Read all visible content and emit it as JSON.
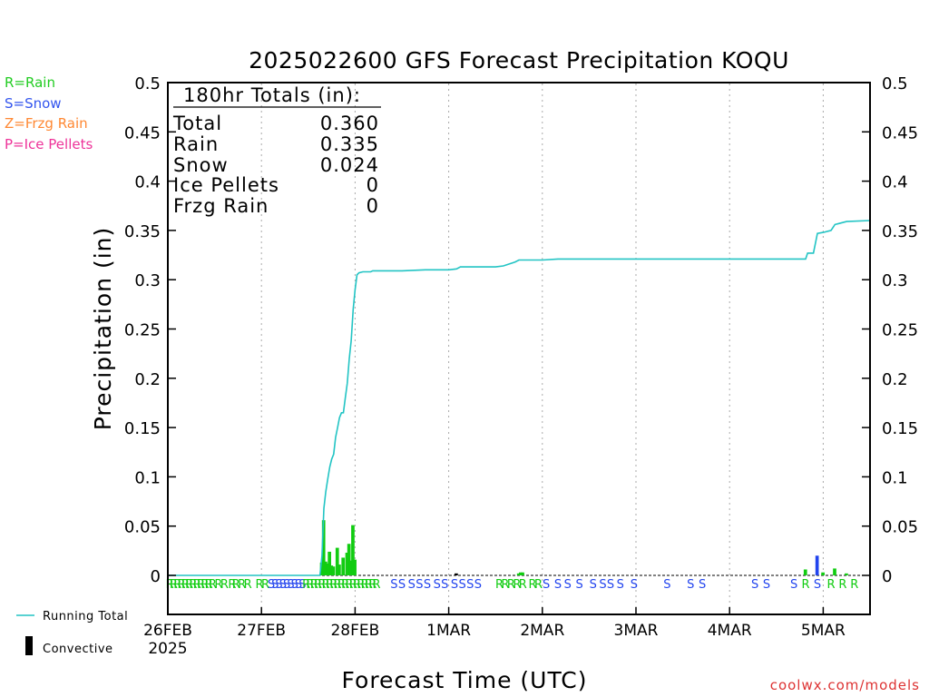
{
  "title": "2025022600 GFS Forecast Precipitation KOQU",
  "legend_types": [
    {
      "text": "R=Rain",
      "color": "#22cc22"
    },
    {
      "text": "S=Snow",
      "color": "#3355ee"
    },
    {
      "text": "Z=Frzg Rain",
      "color": "#ff8833"
    },
    {
      "text": "P=Ice Pellets",
      "color": "#ee3399"
    }
  ],
  "totals_box": {
    "header": "180hr Totals (in):",
    "rows": [
      {
        "label": "Total",
        "value": "0.360"
      },
      {
        "label": "Rain",
        "value": "0.335"
      },
      {
        "label": "Snow",
        "value": "0.024"
      },
      {
        "label": "Ice Pellets",
        "value": "0"
      },
      {
        "label": "Frzg Rain",
        "value": "0"
      }
    ]
  },
  "bottom_legend": {
    "running_total": "Running Total",
    "convective": "Convective"
  },
  "footer": "coolwx.com/models",
  "colors": {
    "running_total": "#22c4c4",
    "rain": "#11cc11",
    "snow": "#2244ee",
    "convective": "#000000",
    "grid": "#aaaaaa",
    "footer": "#dd3333"
  },
  "chart_data": {
    "type": "bar",
    "title": "2025022600 GFS Forecast Precipitation KOQU",
    "xlabel": "Forecast Time (UTC)",
    "ylabel": "Precipitation (in)",
    "ylim": [
      0,
      0.5
    ],
    "xlim_hours": [
      0,
      180
    ],
    "y_ticks": [
      "0",
      "0.05",
      "0.1",
      "0.15",
      "0.2",
      "0.25",
      "0.3",
      "0.35",
      "0.4",
      "0.45",
      "0.5"
    ],
    "x_ticks": [
      {
        "hour": 0,
        "label": "26FEB",
        "sub": "2025"
      },
      {
        "hour": 24,
        "label": "27FEB",
        "sub": ""
      },
      {
        "hour": 48,
        "label": "28FEB",
        "sub": ""
      },
      {
        "hour": 72,
        "label": "1MAR",
        "sub": ""
      },
      {
        "hour": 96,
        "label": "2MAR",
        "sub": ""
      },
      {
        "hour": 120,
        "label": "3MAR",
        "sub": ""
      },
      {
        "hour": 144,
        "label": "4MAR",
        "sub": ""
      },
      {
        "hour": 168,
        "label": "5MAR",
        "sub": ""
      }
    ],
    "grid": "vertical dotted",
    "bars": [
      {
        "hour": 39.5,
        "value": 0.013,
        "type": "rain"
      },
      {
        "hour": 40.0,
        "value": 0.056,
        "type": "rain"
      },
      {
        "hour": 40.5,
        "value": 0.014,
        "type": "rain"
      },
      {
        "hour": 41.0,
        "value": 0.012,
        "type": "rain"
      },
      {
        "hour": 41.5,
        "value": 0.024,
        "type": "rain"
      },
      {
        "hour": 42.0,
        "value": 0.01,
        "type": "rain"
      },
      {
        "hour": 42.5,
        "value": 0.009,
        "type": "rain"
      },
      {
        "hour": 43.5,
        "value": 0.028,
        "type": "rain"
      },
      {
        "hour": 44.0,
        "value": 0.011,
        "type": "rain"
      },
      {
        "hour": 45.0,
        "value": 0.018,
        "type": "rain"
      },
      {
        "hour": 46.0,
        "value": 0.023,
        "type": "rain"
      },
      {
        "hour": 46.5,
        "value": 0.032,
        "type": "rain"
      },
      {
        "hour": 47.0,
        "value": 0.015,
        "type": "rain"
      },
      {
        "hour": 47.5,
        "value": 0.051,
        "type": "rain"
      },
      {
        "hour": 48.0,
        "value": 0.016,
        "type": "rain"
      },
      {
        "hour": 74.0,
        "value": 0.002,
        "type": "convective"
      },
      {
        "hour": 90.0,
        "value": 0.002,
        "type": "rain"
      },
      {
        "hour": 90.5,
        "value": 0.003,
        "type": "rain"
      },
      {
        "hour": 91.0,
        "value": 0.003,
        "type": "rain"
      },
      {
        "hour": 163.5,
        "value": 0.006,
        "type": "rain"
      },
      {
        "hour": 166.5,
        "value": 0.02,
        "type": "snow"
      },
      {
        "hour": 168.0,
        "value": 0.003,
        "type": "rain"
      },
      {
        "hour": 171.0,
        "value": 0.007,
        "type": "rain"
      },
      {
        "hour": 174.0,
        "value": 0.002,
        "type": "rain"
      }
    ],
    "running_total": [
      [
        0,
        0
      ],
      [
        39,
        0
      ],
      [
        39.5,
        0.02
      ],
      [
        40,
        0.068
      ],
      [
        40.5,
        0.085
      ],
      [
        41,
        0.098
      ],
      [
        41.5,
        0.11
      ],
      [
        42,
        0.118
      ],
      [
        42.5,
        0.123
      ],
      [
        43,
        0.14
      ],
      [
        43.5,
        0.15
      ],
      [
        44,
        0.16
      ],
      [
        44.5,
        0.165
      ],
      [
        45,
        0.165
      ],
      [
        45.5,
        0.18
      ],
      [
        46,
        0.195
      ],
      [
        46.5,
        0.22
      ],
      [
        47,
        0.238
      ],
      [
        47.5,
        0.27
      ],
      [
        48,
        0.29
      ],
      [
        48.5,
        0.305
      ],
      [
        49,
        0.307
      ],
      [
        50,
        0.308
      ],
      [
        52,
        0.308
      ],
      [
        52.5,
        0.309
      ],
      [
        60,
        0.309
      ],
      [
        66,
        0.31
      ],
      [
        72,
        0.31
      ],
      [
        74,
        0.311
      ],
      [
        75,
        0.313
      ],
      [
        84,
        0.313
      ],
      [
        86,
        0.314
      ],
      [
        89,
        0.318
      ],
      [
        90,
        0.32
      ],
      [
        96,
        0.32
      ],
      [
        100,
        0.321
      ],
      [
        162,
        0.321
      ],
      [
        163.5,
        0.321
      ],
      [
        164,
        0.327
      ],
      [
        165.5,
        0.327
      ],
      [
        166.5,
        0.347
      ],
      [
        168,
        0.348
      ],
      [
        170,
        0.35
      ],
      [
        171,
        0.356
      ],
      [
        172,
        0.357
      ],
      [
        174,
        0.359
      ],
      [
        180,
        0.36
      ]
    ],
    "type_markers": [
      {
        "hour": 0.5,
        "t": "R"
      },
      {
        "hour": 1.5,
        "t": "R"
      },
      {
        "hour": 2.5,
        "t": "R"
      },
      {
        "hour": 3.5,
        "t": "R"
      },
      {
        "hour": 4.5,
        "t": "R"
      },
      {
        "hour": 5.5,
        "t": "R"
      },
      {
        "hour": 6.5,
        "t": "R"
      },
      {
        "hour": 7.5,
        "t": "R"
      },
      {
        "hour": 8.5,
        "t": "R"
      },
      {
        "hour": 9.5,
        "t": "R"
      },
      {
        "hour": 10.5,
        "t": "R"
      },
      {
        "hour": 11.5,
        "t": "R"
      },
      {
        "hour": 13,
        "t": "R"
      },
      {
        "hour": 14.5,
        "t": "R"
      },
      {
        "hour": 16.5,
        "t": "R"
      },
      {
        "hour": 17.5,
        "t": "R"
      },
      {
        "hour": 19,
        "t": "R"
      },
      {
        "hour": 20.5,
        "t": "R"
      },
      {
        "hour": 23.5,
        "t": "R"
      },
      {
        "hour": 25,
        "t": "R"
      },
      {
        "hour": 26.5,
        "t": "S"
      },
      {
        "hour": 27.5,
        "t": "S"
      },
      {
        "hour": 28.5,
        "t": "S"
      },
      {
        "hour": 29.5,
        "t": "S"
      },
      {
        "hour": 30.5,
        "t": "S"
      },
      {
        "hour": 31.5,
        "t": "S"
      },
      {
        "hour": 32.5,
        "t": "S"
      },
      {
        "hour": 33.5,
        "t": "S"
      },
      {
        "hour": 34.5,
        "t": "S"
      },
      {
        "hour": 35.5,
        "t": "R"
      },
      {
        "hour": 36.5,
        "t": "R"
      },
      {
        "hour": 37.5,
        "t": "R"
      },
      {
        "hour": 38.5,
        "t": "R"
      },
      {
        "hour": 39.5,
        "t": "R"
      },
      {
        "hour": 40.5,
        "t": "R"
      },
      {
        "hour": 41.5,
        "t": "R"
      },
      {
        "hour": 42.5,
        "t": "R"
      },
      {
        "hour": 43.5,
        "t": "R"
      },
      {
        "hour": 44.5,
        "t": "R"
      },
      {
        "hour": 45.5,
        "t": "R"
      },
      {
        "hour": 46.5,
        "t": "R"
      },
      {
        "hour": 47.5,
        "t": "R"
      },
      {
        "hour": 48.5,
        "t": "R"
      },
      {
        "hour": 49.5,
        "t": "R"
      },
      {
        "hour": 50.5,
        "t": "R"
      },
      {
        "hour": 51.5,
        "t": "R"
      },
      {
        "hour": 52.5,
        "t": "R"
      },
      {
        "hour": 53.5,
        "t": "R"
      },
      {
        "hour": 58,
        "t": "S"
      },
      {
        "hour": 60,
        "t": "S"
      },
      {
        "hour": 62.5,
        "t": "S"
      },
      {
        "hour": 64.5,
        "t": "S"
      },
      {
        "hour": 66.5,
        "t": "S"
      },
      {
        "hour": 69,
        "t": "S"
      },
      {
        "hour": 71,
        "t": "S"
      },
      {
        "hour": 73.5,
        "t": "S"
      },
      {
        "hour": 75.5,
        "t": "S"
      },
      {
        "hour": 77.5,
        "t": "S"
      },
      {
        "hour": 79.5,
        "t": "S"
      },
      {
        "hour": 85,
        "t": "R"
      },
      {
        "hour": 86.5,
        "t": "R"
      },
      {
        "hour": 88,
        "t": "R"
      },
      {
        "hour": 89.5,
        "t": "R"
      },
      {
        "hour": 91,
        "t": "R"
      },
      {
        "hour": 93.5,
        "t": "R"
      },
      {
        "hour": 95,
        "t": "R"
      },
      {
        "hour": 97,
        "t": "S"
      },
      {
        "hour": 100,
        "t": "S"
      },
      {
        "hour": 102.5,
        "t": "S"
      },
      {
        "hour": 105.5,
        "t": "S"
      },
      {
        "hour": 109,
        "t": "S"
      },
      {
        "hour": 111.5,
        "t": "S"
      },
      {
        "hour": 113.5,
        "t": "S"
      },
      {
        "hour": 116,
        "t": "S"
      },
      {
        "hour": 119.5,
        "t": "S"
      },
      {
        "hour": 128,
        "t": "S"
      },
      {
        "hour": 134,
        "t": "S"
      },
      {
        "hour": 137,
        "t": "S"
      },
      {
        "hour": 150.5,
        "t": "S"
      },
      {
        "hour": 153.5,
        "t": "S"
      },
      {
        "hour": 160.5,
        "t": "S"
      },
      {
        "hour": 163.5,
        "t": "R"
      },
      {
        "hour": 166.5,
        "t": "S"
      },
      {
        "hour": 170,
        "t": "R"
      },
      {
        "hour": 173,
        "t": "R"
      },
      {
        "hour": 176,
        "t": "R"
      }
    ]
  }
}
